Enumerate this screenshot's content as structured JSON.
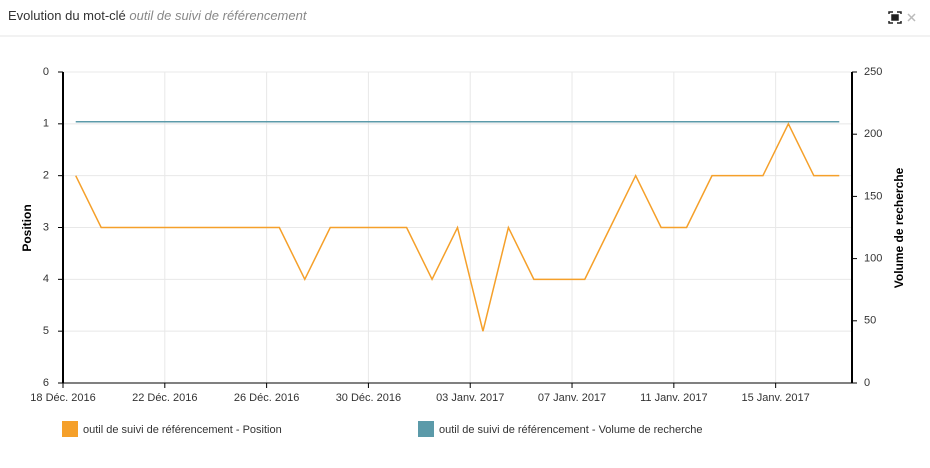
{
  "header": {
    "title": "Evolution du mot-clé",
    "keyword": "outil de suivi de référencement"
  },
  "chart_data": {
    "type": "line",
    "categories": [
      "18 Déc. 2016",
      null,
      null,
      null,
      "22 Déc. 2016",
      null,
      null,
      null,
      "26 Déc. 2016",
      null,
      null,
      null,
      "30 Déc. 2016",
      null,
      null,
      null,
      "03 Janv. 2017",
      null,
      null,
      null,
      "07 Janv. 2017",
      null,
      null,
      null,
      "11 Janv. 2017",
      null,
      null,
      null,
      "15 Janv. 2017",
      null,
      null
    ],
    "y_label": "Position",
    "y2_label": "Volume de recherche",
    "ylim": [
      0,
      6
    ],
    "yticks": [
      0,
      1,
      2,
      3,
      4,
      5,
      6
    ],
    "y_reversed": true,
    "y2lim": [
      0,
      250
    ],
    "y2ticks": [
      0,
      50,
      100,
      150,
      200,
      250
    ],
    "grid": true,
    "series": [
      {
        "name": "outil de suivi de référencement - Position",
        "color": "#f5a02a",
        "values": [
          2,
          3,
          3,
          3,
          3,
          3,
          3,
          3,
          3,
          4,
          3,
          3,
          3,
          3,
          4,
          3,
          5,
          3,
          4,
          4,
          4,
          3,
          2,
          3,
          3,
          2,
          2,
          2,
          1,
          2,
          2
        ]
      },
      {
        "name": "outil de suivi de référencement - Volume de recherche",
        "color": "#5b9aa9",
        "axis": "y2",
        "values": [
          210,
          210,
          210,
          210,
          210,
          210,
          210,
          210,
          210,
          210,
          210,
          210,
          210,
          210,
          210,
          210,
          210,
          210,
          210,
          210,
          210,
          210,
          210,
          210,
          210,
          210,
          210,
          210,
          210,
          210,
          210
        ]
      }
    ]
  }
}
